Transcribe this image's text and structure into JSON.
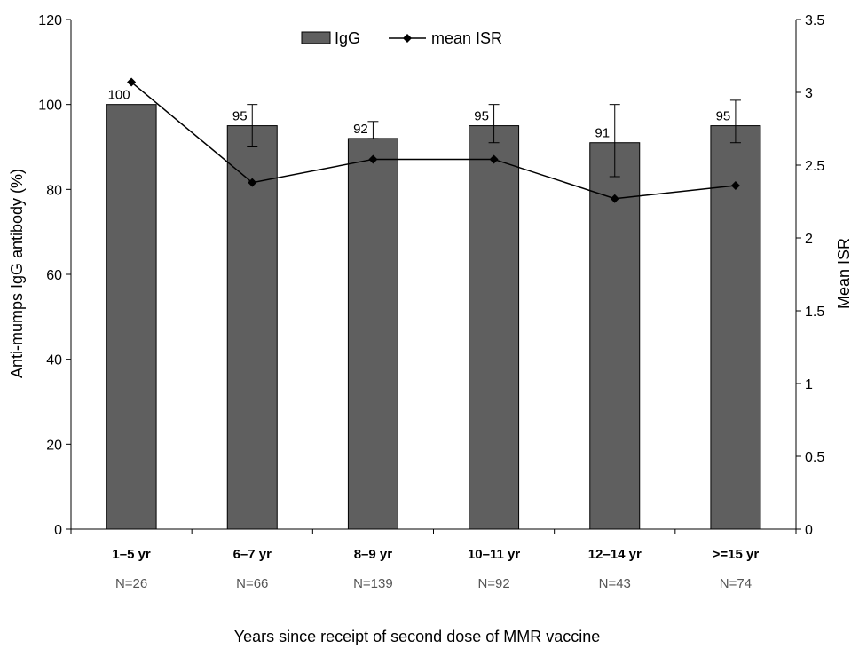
{
  "chart_data": {
    "type": "bar",
    "categories": [
      "1–5 yr",
      "6–7 yr",
      "8–9 yr",
      "10–11 yr",
      "12–14 yr",
      ">=15 yr"
    ],
    "sample_sizes": [
      "N=26",
      "N=66",
      "N=139",
      "N=92",
      "N=43",
      "N=74"
    ],
    "series": [
      {
        "name": "IgG",
        "kind": "bar",
        "axis": "left",
        "values": [
          100,
          95,
          92,
          95,
          91,
          95
        ],
        "data_labels": [
          "100",
          "95",
          "92",
          "95",
          "91",
          "95"
        ],
        "error_upper": [
          100,
          100,
          96,
          100,
          100,
          101
        ],
        "error_lower": [
          100,
          90,
          92,
          91,
          83,
          91
        ],
        "color": "#5f5f5f"
      },
      {
        "name": "mean ISR",
        "kind": "line",
        "axis": "right",
        "values": [
          3.07,
          2.38,
          2.54,
          2.54,
          2.27,
          2.36
        ],
        "color": "#000000"
      }
    ],
    "xlabel": "Years since receipt of second dose of MMR vaccine",
    "ylabel": "Anti-mumps IgG antibody (%)",
    "y2label": "Mean ISR",
    "ylim": [
      0,
      120
    ],
    "yticks": [
      "0",
      "20",
      "40",
      "60",
      "80",
      "100",
      "120"
    ],
    "y2lim": [
      0,
      3.5
    ],
    "y2ticks": [
      "0",
      "0.5",
      "1",
      "1.5",
      "2",
      "2.5",
      "3",
      "3.5"
    ],
    "grid": false,
    "legend": "top-center"
  }
}
